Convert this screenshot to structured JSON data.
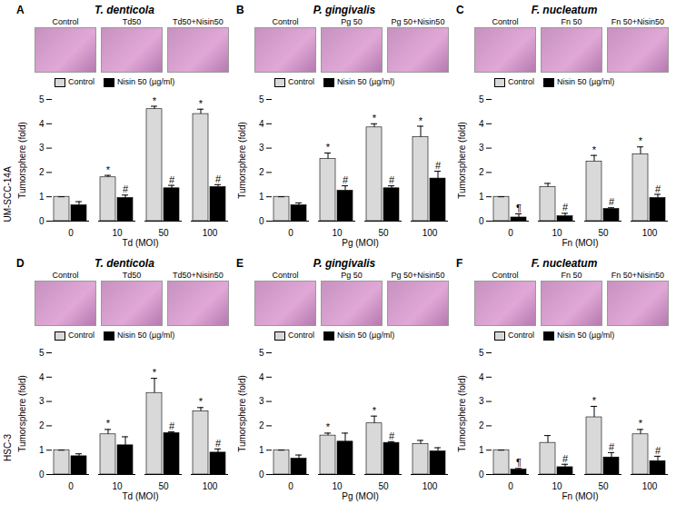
{
  "chart_data": [
    {
      "type": "bar",
      "panel": "A",
      "title": "T. denticola",
      "row_label": "UM-SCC-14A",
      "images": [
        "Control",
        "Td50",
        "Td50+Nisin50"
      ],
      "x_label": "Td (MOI)",
      "y_label": "Tumorsphere (fold)",
      "categories": [
        "0",
        "10",
        "50",
        "100"
      ],
      "series": [
        {
          "name": "Control",
          "color": "#d9d9d9",
          "values": [
            1,
            1.8,
            4.6,
            4.4
          ],
          "errors": [
            0,
            0.08,
            0.12,
            0.2
          ],
          "annotations": [
            null,
            "*",
            "*",
            "*"
          ]
        },
        {
          "name": "Nisin 50 (µg/ml)",
          "color": "#000000",
          "values": [
            0.65,
            0.95,
            1.35,
            1.4
          ],
          "errors": [
            0.15,
            0.12,
            0.12,
            0.1
          ],
          "annotations": [
            null,
            "#",
            "#",
            "#"
          ]
        }
      ],
      "ylim": [
        0,
        5
      ],
      "yticks": [
        0,
        1,
        2,
        3,
        4,
        5
      ],
      "legend": "top"
    },
    {
      "type": "bar",
      "panel": "B",
      "title": "P. gingivalis",
      "images": [
        "Control",
        "Pg 50",
        "Pg 50+Nisin50"
      ],
      "x_label": "Pg (MOI)",
      "y_label": "Tumorsphere (fold)",
      "categories": [
        "0",
        "10",
        "50",
        "100"
      ],
      "series": [
        {
          "name": "Control",
          "color": "#d9d9d9",
          "values": [
            1,
            2.55,
            3.85,
            3.45
          ],
          "errors": [
            0,
            0.25,
            0.15,
            0.45
          ],
          "annotations": [
            null,
            "*",
            "*",
            "*"
          ]
        },
        {
          "name": "Nisin 50 (µg/ml)",
          "color": "#000000",
          "values": [
            0.65,
            1.25,
            1.35,
            1.75
          ],
          "errors": [
            0.1,
            0.2,
            0.1,
            0.3
          ],
          "annotations": [
            null,
            "#",
            "#",
            "#"
          ]
        }
      ],
      "ylim": [
        0,
        5
      ],
      "yticks": [
        0,
        1,
        2,
        3,
        4,
        5
      ],
      "legend": "top"
    },
    {
      "type": "bar",
      "panel": "C",
      "title": "F. nucleatum",
      "images": [
        "Control",
        "Fn 50",
        "Fn 50+Nisin50"
      ],
      "x_label": "Fn (MOI)",
      "y_label": "Tumorsphere (fold)",
      "categories": [
        "0",
        "10",
        "50",
        "100"
      ],
      "series": [
        {
          "name": "Control",
          "color": "#d9d9d9",
          "values": [
            1,
            1.4,
            2.45,
            2.75
          ],
          "errors": [
            0,
            0.15,
            0.25,
            0.3
          ],
          "annotations": [
            null,
            null,
            "*",
            "*"
          ]
        },
        {
          "name": "Nisin 50 (µg/ml)",
          "color": "#000000",
          "values": [
            0.15,
            0.2,
            0.5,
            0.95
          ],
          "errors": [
            0.15,
            0.12,
            0.05,
            0.15
          ],
          "annotations": [
            "¶",
            "#",
            "#",
            "#"
          ]
        }
      ],
      "ylim": [
        0,
        5
      ],
      "yticks": [
        0,
        1,
        2,
        3,
        4,
        5
      ],
      "legend": "top"
    },
    {
      "type": "bar",
      "panel": "D",
      "title": "T. denticola",
      "row_label": "HSC-3",
      "images": [
        "Control",
        "Td50",
        "Td50+Nisin50"
      ],
      "x_label": "Td (MOI)",
      "y_label": "Tumorsphere (fold)",
      "categories": [
        "0",
        "10",
        "50",
        "100"
      ],
      "series": [
        {
          "name": "Control",
          "color": "#d9d9d9",
          "values": [
            1,
            1.65,
            3.35,
            2.6
          ],
          "errors": [
            0,
            0.2,
            0.6,
            0.15
          ],
          "annotations": [
            null,
            "*",
            "*",
            "*"
          ]
        },
        {
          "name": "Nisin 50 (µg/ml)",
          "color": "#000000",
          "values": [
            0.75,
            1.2,
            1.7,
            0.9
          ],
          "errors": [
            0.1,
            0.35,
            0.05,
            0.15
          ],
          "annotations": [
            null,
            null,
            "#",
            "#"
          ]
        }
      ],
      "ylim": [
        0,
        5
      ],
      "yticks": [
        0,
        1,
        2,
        3,
        4,
        5
      ],
      "legend": "top"
    },
    {
      "type": "bar",
      "panel": "E",
      "title": "P. gingivalis",
      "images": [
        "Control",
        "Pg 50",
        "Pg 50+Nisin50"
      ],
      "x_label": "Pg (MOI)",
      "y_label": "Tumorsphere (fold)",
      "categories": [
        "0",
        "10",
        "50",
        "100"
      ],
      "series": [
        {
          "name": "Control",
          "color": "#d9d9d9",
          "values": [
            1,
            1.6,
            2.1,
            1.25
          ],
          "errors": [
            0,
            0.1,
            0.3,
            0.15
          ],
          "annotations": [
            null,
            "*",
            "*",
            null
          ]
        },
        {
          "name": "Nisin 50 (µg/ml)",
          "color": "#000000",
          "values": [
            0.65,
            1.35,
            1.3,
            0.95
          ],
          "errors": [
            0.15,
            0.35,
            0.05,
            0.15
          ],
          "annotations": [
            null,
            null,
            "#",
            null
          ]
        }
      ],
      "ylim": [
        0,
        5
      ],
      "yticks": [
        0,
        1,
        2,
        3,
        4,
        5
      ],
      "legend": "top"
    },
    {
      "type": "bar",
      "panel": "F",
      "title": "F. nucleatum",
      "images": [
        "Control",
        "Fn 50",
        "Fn 50+Nisin50"
      ],
      "x_label": "Fn (MOI)",
      "y_label": "Tumorsphere (fold)",
      "categories": [
        "0",
        "10",
        "50",
        "100"
      ],
      "series": [
        {
          "name": "Control",
          "color": "#d9d9d9",
          "values": [
            1,
            1.3,
            2.35,
            1.65
          ],
          "errors": [
            0,
            0.3,
            0.45,
            0.2
          ],
          "annotations": [
            null,
            null,
            "*",
            "*"
          ]
        },
        {
          "name": "Nisin 50 (µg/ml)",
          "color": "#000000",
          "values": [
            0.2,
            0.3,
            0.7,
            0.55
          ],
          "errors": [
            0.05,
            0.12,
            0.2,
            0.2
          ],
          "annotations": [
            "¶",
            "#",
            "#",
            "#"
          ]
        }
      ],
      "ylim": [
        0,
        5
      ],
      "yticks": [
        0,
        1,
        2,
        3,
        4,
        5
      ],
      "legend": "top"
    }
  ]
}
